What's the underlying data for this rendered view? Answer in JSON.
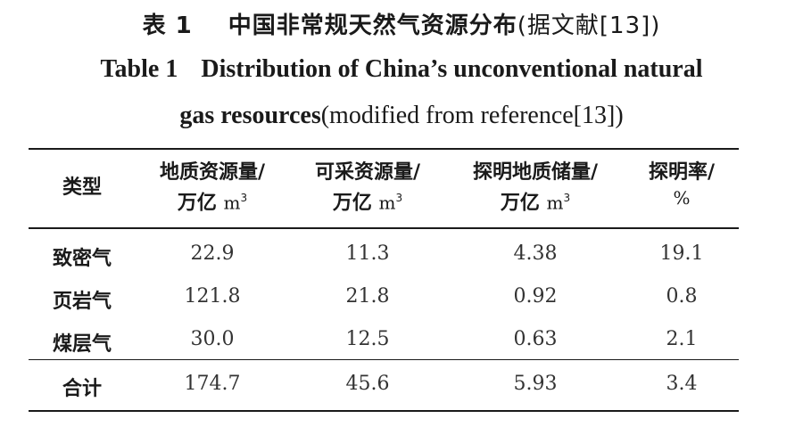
{
  "caption": {
    "zh_label": "表 1",
    "zh_title": "中国非常规天然气资源分布",
    "zh_ref": "(据文献[13])",
    "en_label": "Table 1",
    "en_title_line1": "Distribution of China’s unconventional natural",
    "en_title_line2": "gas resources",
    "en_ref": "(modified from reference[13])"
  },
  "table": {
    "headers": [
      {
        "line1": "类型",
        "line2": "",
        "unit_exp": ""
      },
      {
        "line1": "地质资源量/",
        "line2": "万亿",
        "unit": "m",
        "unit_exp": "3"
      },
      {
        "line1": "可采资源量/",
        "line2": "万亿",
        "unit": "m",
        "unit_exp": "3"
      },
      {
        "line1": "探明地质储量/",
        "line2": "万亿",
        "unit": "m",
        "unit_exp": "3"
      },
      {
        "line1": "探明率/",
        "line2": "%",
        "unit_exp": ""
      }
    ],
    "rows": [
      {
        "type": "致密气",
        "geo": "22.9",
        "rec": "11.3",
        "proved": "4.38",
        "rate": "19.1"
      },
      {
        "type": "页岩气",
        "geo": "121.8",
        "rec": "21.8",
        "proved": "0.92",
        "rate": "0.8"
      },
      {
        "type": "煤层气",
        "geo": "30.0",
        "rec": "12.5",
        "proved": "0.63",
        "rate": "2.1"
      }
    ],
    "total": {
      "type": "合计",
      "geo": "174.7",
      "rec": "45.6",
      "proved": "5.93",
      "rate": "3.4"
    }
  }
}
